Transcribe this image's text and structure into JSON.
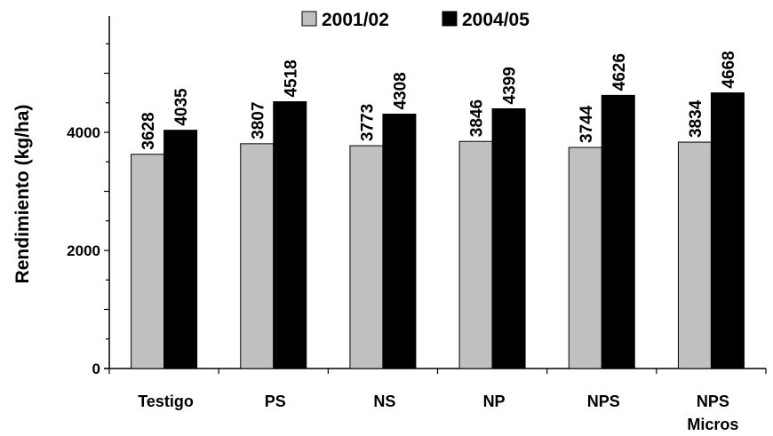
{
  "chart_data": {
    "type": "bar",
    "ylabel": "Rendimiento (kg/ha)",
    "xlabel": "",
    "ylim": [
      0,
      6000
    ],
    "yticks": [
      0,
      2000,
      4000
    ],
    "categories": [
      "Testigo",
      "PS",
      "NS",
      "NP",
      "NPS",
      [
        "NPS",
        "Micros"
      ]
    ],
    "series": [
      {
        "name": "2001/02",
        "color": "#c0c0c0",
        "values": [
          3628,
          3807,
          3773,
          3846,
          3744,
          3834
        ]
      },
      {
        "name": "2004/05",
        "color": "#000000",
        "values": [
          4035,
          4518,
          4308,
          4399,
          4626,
          4668
        ]
      }
    ],
    "legend_position": "top-center",
    "grid": false
  }
}
